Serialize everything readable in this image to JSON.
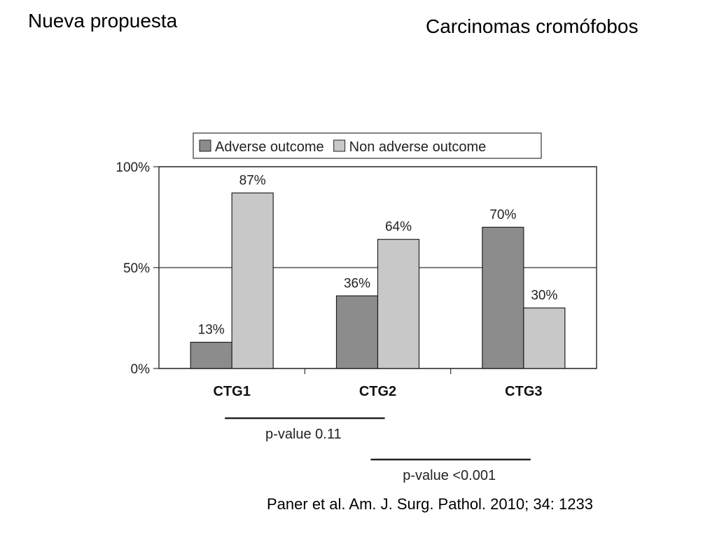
{
  "slide": {
    "title_left": "Nueva propuesta",
    "title_right": "Carcinomas cromófobos",
    "citation": "Paner et al.  Am. J. Surg. Pathol. 2010; 34: 1233"
  },
  "chart_data": {
    "type": "bar",
    "categories": [
      "CTG1",
      "CTG2",
      "CTG3"
    ],
    "series": [
      {
        "name": "Adverse outcome",
        "values": [
          13,
          36,
          70
        ],
        "labels": [
          "13%",
          "36%",
          "70%"
        ],
        "color": "#8c8c8c"
      },
      {
        "name": "Non adverse outcome",
        "values": [
          87,
          64,
          30
        ],
        "labels": [
          "87%",
          "64%",
          "30%"
        ],
        "color": "#c8c8c8"
      }
    ],
    "ylim": [
      0,
      100
    ],
    "yticks": [
      {
        "value": 0,
        "label": "0%"
      },
      {
        "value": 50,
        "label": "50%"
      },
      {
        "value": 100,
        "label": "100%"
      }
    ],
    "grid": true,
    "legend": "top",
    "annotations": [
      {
        "text": "p-value 0.11",
        "from": "CTG1",
        "to": "CTG2"
      },
      {
        "text": "p-value <0.001",
        "from": "CTG2",
        "to": "CTG3"
      }
    ]
  }
}
